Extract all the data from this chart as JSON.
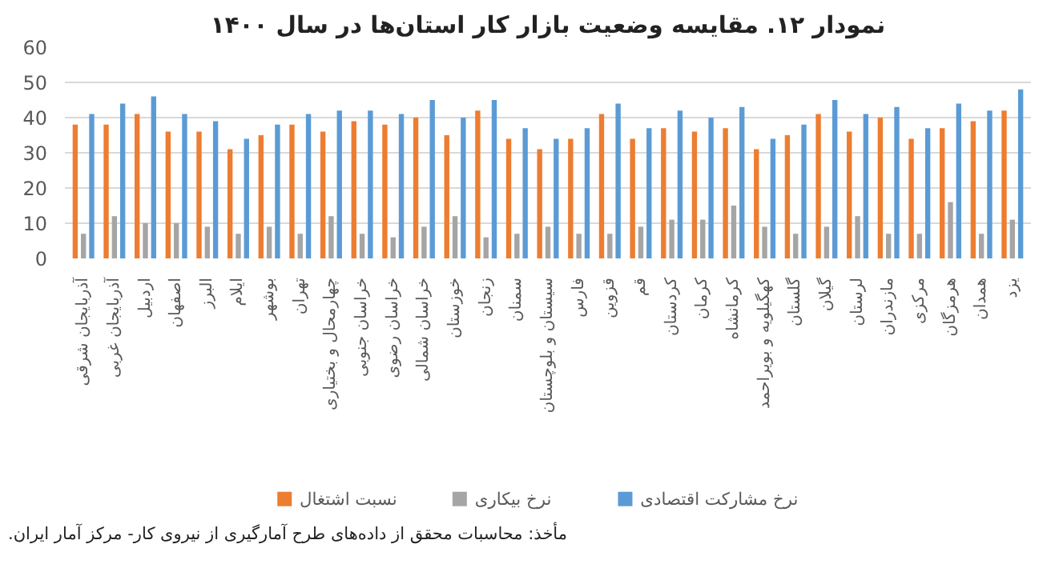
{
  "chart_data": {
    "type": "bar",
    "title": "نمودار ۱۲. مقایسه وضعیت بازار کار استان‌ها در سال ۱۴۰۰",
    "categories": [
      "آذربایجان شرقی",
      "آذربایجان غربی",
      "اردبیل",
      "اصفهان",
      "البرز",
      "ایلام",
      "بوشهر",
      "تهران",
      "چهارمحال و بختیاری",
      "خراسان جنوبی",
      "خراسان رضوی",
      "خراسان شمالی",
      "خوزستان",
      "زنجان",
      "سمنان",
      "سیستان و بلوچستان",
      "فارس",
      "قزوین",
      "قم",
      "کردستان",
      "کرمان",
      "کرمانشاه",
      "کهگیلویه و بویراحمد",
      "گلستان",
      "گیلان",
      "لرستان",
      "مازندران",
      "مرکزی",
      "هرمزگان",
      "همدان",
      "یزد"
    ],
    "series": [
      {
        "name": "نسبت اشتغال",
        "color": "#ed7d31",
        "values": [
          38,
          38,
          41,
          36,
          36,
          31,
          35,
          38,
          36,
          39,
          38,
          40,
          35,
          42,
          34,
          31,
          34,
          41,
          34,
          37,
          36,
          37,
          31,
          35,
          41,
          36,
          40,
          34,
          37,
          39,
          42
        ]
      },
      {
        "name": "نرخ بیکاری",
        "color": "#a5a5a5",
        "values": [
          7,
          12,
          10,
          10,
          9,
          7,
          9,
          7,
          12,
          7,
          6,
          9,
          12,
          6,
          7,
          9,
          7,
          7,
          9,
          11,
          11,
          15,
          9,
          7,
          9,
          12,
          7,
          7,
          16,
          7,
          11
        ]
      },
      {
        "name": "نرخ مشارکت اقتصادی",
        "color": "#5b9bd5",
        "values": [
          41,
          44,
          46,
          41,
          39,
          34,
          38,
          41,
          42,
          42,
          41,
          45,
          40,
          45,
          37,
          34,
          37,
          44,
          37,
          42,
          40,
          43,
          34,
          38,
          45,
          41,
          43,
          37,
          44,
          42,
          48
        ]
      }
    ],
    "ylim": [
      0,
      60
    ],
    "yticks": [
      0,
      10,
      20,
      30,
      40,
      50,
      60
    ],
    "grid": "y",
    "legend": "bottom",
    "annotations": [
      "مأخذ: محاسبات محقق از داده‌های طرح آمارگیری از نیروی کار- مرکز آمار ایران."
    ]
  }
}
